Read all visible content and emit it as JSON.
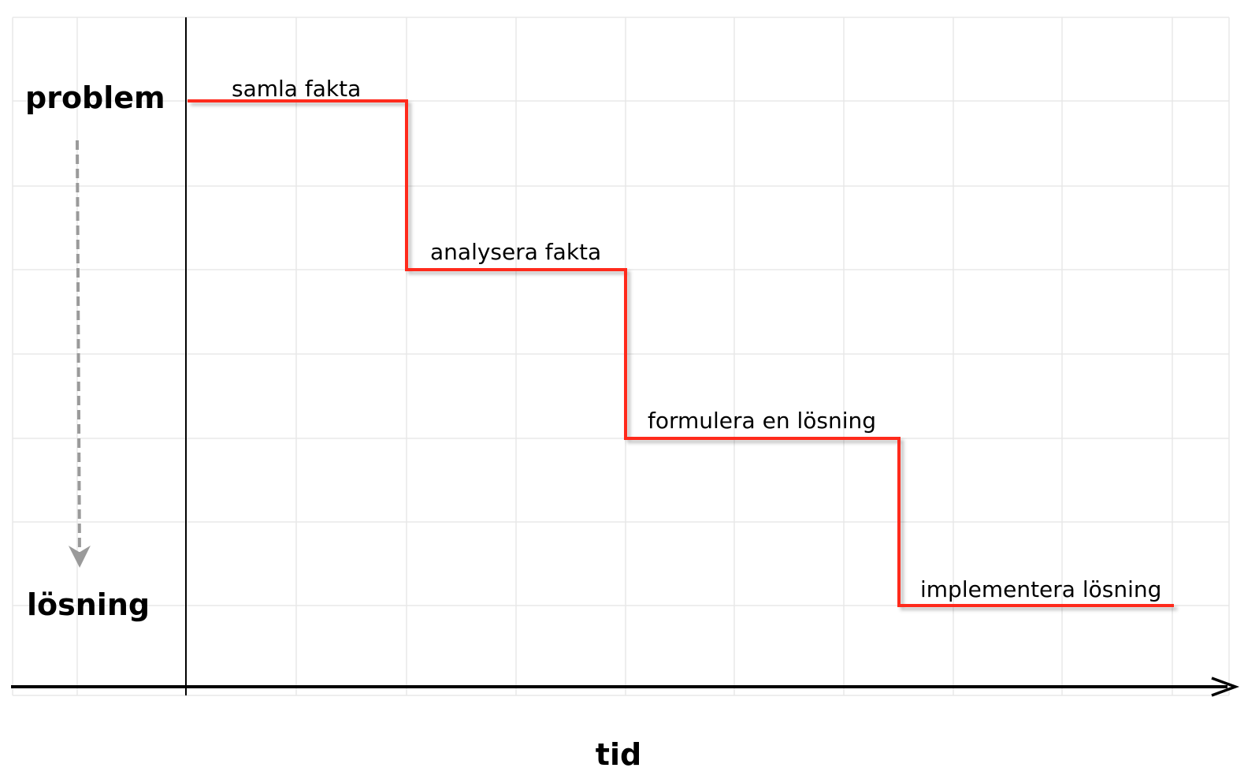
{
  "diagram": {
    "y_top_label": "problem",
    "y_bottom_label": "lösning",
    "x_label": "tid",
    "steps": [
      {
        "label": "samla fakta"
      },
      {
        "label": "analysera fakta"
      },
      {
        "label": "formulera en lösning"
      },
      {
        "label": "implementera lösning"
      }
    ]
  },
  "colors": {
    "step_line": "#ff2a1a",
    "axis": "#000000",
    "grid": "#e8e8e8",
    "progress_arrow": "#9a9a9a"
  }
}
